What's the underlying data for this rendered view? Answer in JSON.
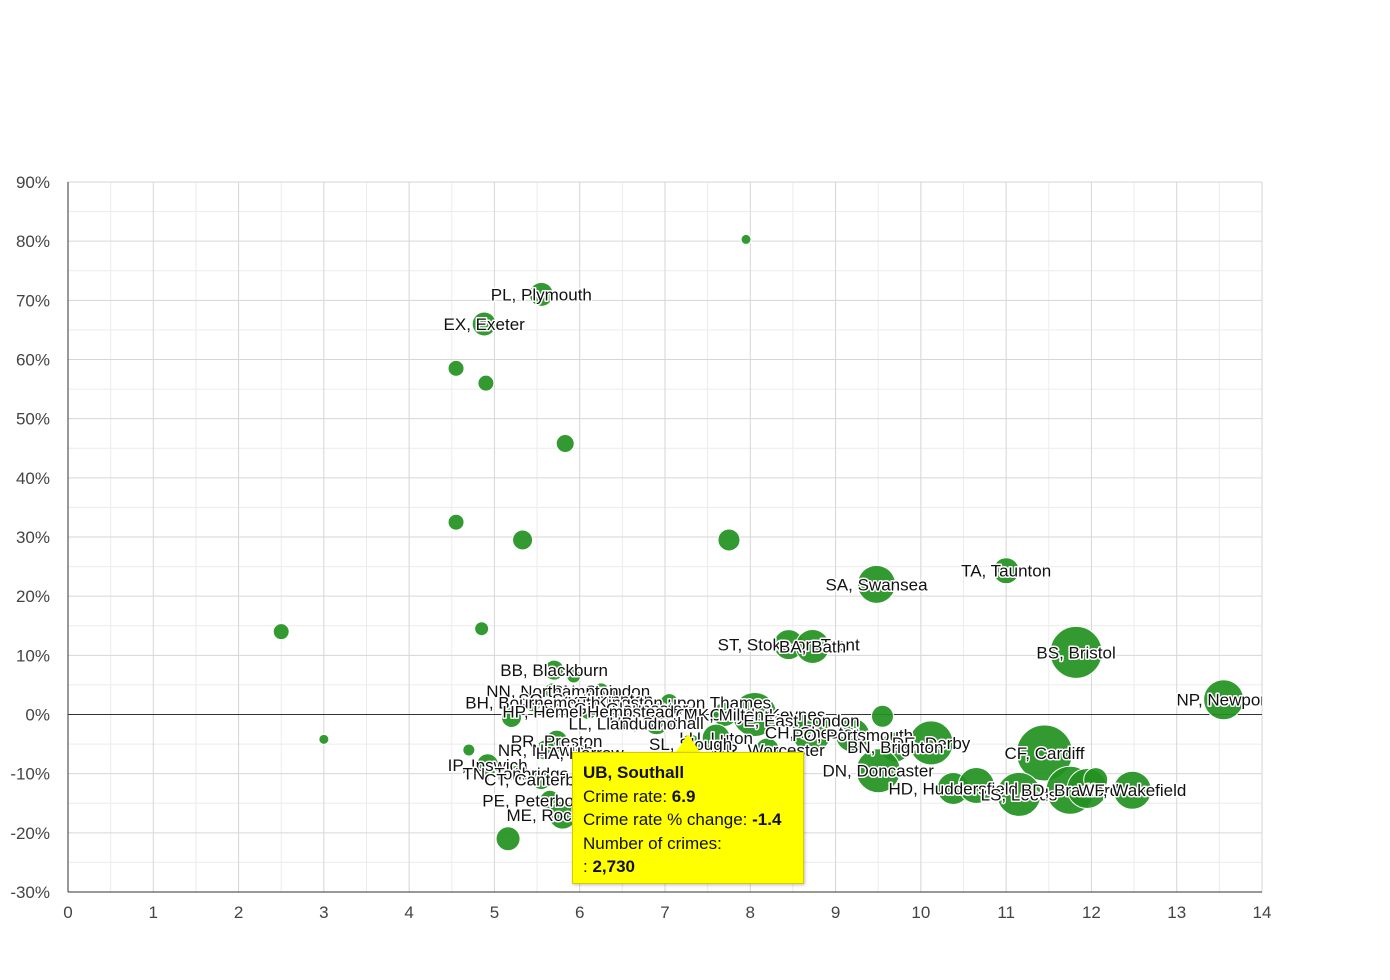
{
  "chart_data": {
    "type": "scatter",
    "subtype": "bubble",
    "title": "",
    "xlabel": "",
    "ylabel": "",
    "xlim": [
      0,
      14
    ],
    "ylim": [
      -30,
      90
    ],
    "x_ticks": [
      0,
      1,
      2,
      3,
      4,
      5,
      6,
      7,
      8,
      9,
      10,
      11,
      12,
      13,
      14
    ],
    "y_ticks": [
      -30,
      -20,
      -10,
      0,
      10,
      20,
      30,
      40,
      50,
      60,
      70,
      80,
      90
    ],
    "y_tick_suffix": "%",
    "grid": true,
    "bubble_color": "#22911f",
    "points": [
      {
        "x": 7.95,
        "y": 80.3,
        "size": 5,
        "label": ""
      },
      {
        "x": 5.55,
        "y": 71.0,
        "size": 12,
        "label": "PL, Plymouth"
      },
      {
        "x": 4.88,
        "y": 66.0,
        "size": 12,
        "label": "EX, Exeter"
      },
      {
        "x": 4.55,
        "y": 58.5,
        "size": 8,
        "label": ""
      },
      {
        "x": 4.9,
        "y": 56.0,
        "size": 8,
        "label": ""
      },
      {
        "x": 5.83,
        "y": 45.8,
        "size": 9,
        "label": ""
      },
      {
        "x": 4.55,
        "y": 32.5,
        "size": 8,
        "label": ""
      },
      {
        "x": 5.33,
        "y": 29.5,
        "size": 10,
        "label": ""
      },
      {
        "x": 7.75,
        "y": 29.5,
        "size": 11,
        "label": ""
      },
      {
        "x": 9.48,
        "y": 22.0,
        "size": 19,
        "label": "SA, Swansea"
      },
      {
        "x": 11.0,
        "y": 24.3,
        "size": 13,
        "label": "TA, Taunton"
      },
      {
        "x": 2.5,
        "y": 14.0,
        "size": 8,
        "label": ""
      },
      {
        "x": 4.85,
        "y": 14.5,
        "size": 7,
        "label": ""
      },
      {
        "x": 8.45,
        "y": 11.8,
        "size": 15,
        "label": "ST, Stoke-on-Trent"
      },
      {
        "x": 8.73,
        "y": 11.5,
        "size": 17,
        "label": "BA, Bath"
      },
      {
        "x": 11.82,
        "y": 10.5,
        "size": 26,
        "label": "BS, Bristol"
      },
      {
        "x": 13.55,
        "y": 2.5,
        "size": 20,
        "label": "NP, Newport"
      },
      {
        "x": 5.7,
        "y": 7.5,
        "size": 10,
        "label": "BB, Blackburn"
      },
      {
        "x": 5.93,
        "y": 6.5,
        "size": 7,
        "label": ""
      },
      {
        "x": 6.25,
        "y": 4.0,
        "size": 8,
        "label": "SN, Swindon"
      },
      {
        "x": 5.68,
        "y": 4.0,
        "size": 8,
        "label": "NN, Northampton"
      },
      {
        "x": 6.07,
        "y": 2.5,
        "size": 7,
        "label": "SO, Southampton"
      },
      {
        "x": 7.05,
        "y": 2.0,
        "size": 9,
        "label": "KT, Kingston upon Thames"
      },
      {
        "x": 5.45,
        "y": 2.0,
        "size": 9,
        "label": "BH, Bournemouth"
      },
      {
        "x": 6.6,
        "y": 1.0,
        "size": 8,
        "label": "GL, Gloucester"
      },
      {
        "x": 6.1,
        "y": 0.5,
        "size": 8,
        "label": "HP, Hemel Hempstead"
      },
      {
        "x": 5.2,
        "y": -0.5,
        "size": 10,
        "label": ""
      },
      {
        "x": 6.45,
        "y": 0.5,
        "size": 9,
        "label": ""
      },
      {
        "x": 6.95,
        "y": 0.5,
        "size": 9,
        "label": ""
      },
      {
        "x": 7.7,
        "y": 0.0,
        "size": 12,
        "label": "CR, Croydon"
      },
      {
        "x": 8.05,
        "y": 0.0,
        "size": 22,
        "label": "MK, Milton Keynes"
      },
      {
        "x": 8.6,
        "y": -1.0,
        "size": 10,
        "label": "E, East London"
      },
      {
        "x": 9.55,
        "y": -0.3,
        "size": 11,
        "label": ""
      },
      {
        "x": 6.9,
        "y": -1.4,
        "size": 12,
        "label": "UB, Southall"
      },
      {
        "x": 6.5,
        "y": -1.5,
        "size": 8,
        "label": "LL, Llandudno"
      },
      {
        "x": 7.6,
        "y": -4.0,
        "size": 14,
        "label": "LU, Luton"
      },
      {
        "x": 8.72,
        "y": -3.0,
        "size": 20,
        "label": "CH, Chester"
      },
      {
        "x": 9.2,
        "y": -3.5,
        "size": 17,
        "label": "PO, Portsmouth"
      },
      {
        "x": 10.12,
        "y": -4.8,
        "size": 22,
        "label": "DE, Derby"
      },
      {
        "x": 9.7,
        "y": -5.5,
        "size": 15,
        "label": "BN, Brighton"
      },
      {
        "x": 8.2,
        "y": -6.0,
        "size": 12,
        "label": "WR, Worcester"
      },
      {
        "x": 7.3,
        "y": -5.0,
        "size": 10,
        "label": "SL, Slough"
      },
      {
        "x": 5.73,
        "y": -4.5,
        "size": 11,
        "label": "PR, Preston"
      },
      {
        "x": 5.6,
        "y": -6.0,
        "size": 10,
        "label": "NR, Norwich"
      },
      {
        "x": 6.0,
        "y": -6.5,
        "size": 9,
        "label": "HA, Harrow"
      },
      {
        "x": 11.45,
        "y": -6.5,
        "size": 28,
        "label": "CF, Cardiff"
      },
      {
        "x": 9.5,
        "y": -9.5,
        "size": 22,
        "label": "DN, Doncaster"
      },
      {
        "x": 4.7,
        "y": -6.0,
        "size": 6,
        "label": ""
      },
      {
        "x": 3.0,
        "y": -4.2,
        "size": 5,
        "label": ""
      },
      {
        "x": 4.92,
        "y": -8.5,
        "size": 11,
        "label": "IP, Ipswich"
      },
      {
        "x": 5.25,
        "y": -10.0,
        "size": 8,
        "label": "TN, Tonbridge"
      },
      {
        "x": 5.55,
        "y": -11.0,
        "size": 10,
        "label": "CT, Canterbury"
      },
      {
        "x": 5.65,
        "y": -14.5,
        "size": 10,
        "label": "PE, Peterborough"
      },
      {
        "x": 10.38,
        "y": -12.5,
        "size": 16,
        "label": "HD, Huddersfield"
      },
      {
        "x": 10.65,
        "y": -12.0,
        "size": 18,
        "label": ""
      },
      {
        "x": 11.15,
        "y": -13.5,
        "size": 22,
        "label": "LS, Leeds"
      },
      {
        "x": 11.75,
        "y": -12.8,
        "size": 24,
        "label": "BD, Bradford"
      },
      {
        "x": 11.95,
        "y": -12.5,
        "size": 20,
        "label": ""
      },
      {
        "x": 12.05,
        "y": -11.0,
        "size": 12,
        "label": ""
      },
      {
        "x": 12.48,
        "y": -12.8,
        "size": 19,
        "label": "WF, Wakefield"
      },
      {
        "x": 5.8,
        "y": -17.0,
        "size": 14,
        "label": "ME, Rochester"
      },
      {
        "x": 5.16,
        "y": -21.0,
        "size": 12,
        "label": ""
      }
    ],
    "tooltip": {
      "title": "UB, Southall",
      "rows": [
        {
          "label": "Crime rate: ",
          "value": "6.9"
        },
        {
          "label": "Crime rate % change: ",
          "value": "-1.4"
        },
        {
          "label": "Number of crimes:",
          "value": ""
        },
        {
          "label": ": ",
          "value": "2,730"
        }
      ]
    }
  }
}
